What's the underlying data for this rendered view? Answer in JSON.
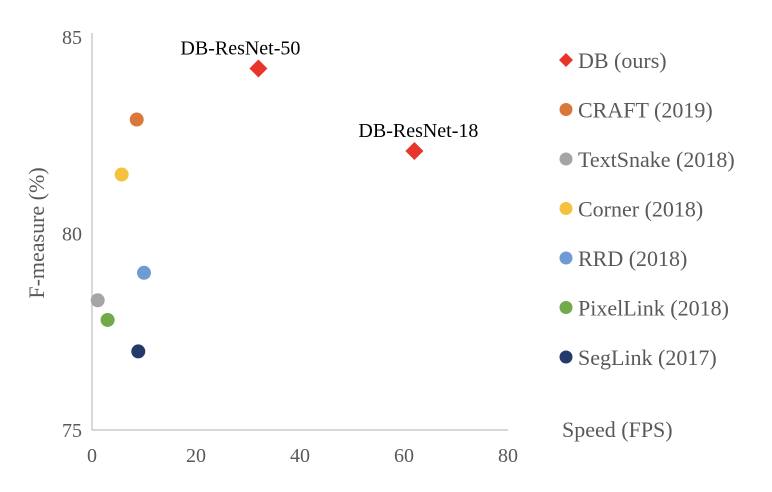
{
  "chart_data": {
    "type": "scatter",
    "title": "",
    "xlabel": "Speed (FPS)",
    "ylabel": "F-measure (%)",
    "xlim": [
      0,
      80
    ],
    "ylim": [
      75,
      85
    ],
    "x_ticks": [
      0,
      20,
      40,
      60,
      80
    ],
    "y_ticks": [
      75,
      80,
      85
    ],
    "grid": false,
    "legend_position": "right",
    "series": [
      {
        "name": "DB (ours)",
        "marker": "diamond",
        "color": "#e8352b",
        "points": [
          {
            "x": 32,
            "y": 84.2,
            "label": "DB-ResNet-50"
          },
          {
            "x": 62,
            "y": 82.1,
            "label": "DB-ResNet-18"
          }
        ]
      },
      {
        "name": "CRAFT (2019)",
        "marker": "circle",
        "color": "#d9783a",
        "points": [
          {
            "x": 8.6,
            "y": 82.9
          }
        ]
      },
      {
        "name": "TextSnake (2018)",
        "marker": "circle",
        "color": "#a5a5a5",
        "points": [
          {
            "x": 1.1,
            "y": 78.3
          }
        ]
      },
      {
        "name": "Corner (2018)",
        "marker": "circle",
        "color": "#f4c23c",
        "points": [
          {
            "x": 5.7,
            "y": 81.5
          }
        ]
      },
      {
        "name": "RRD (2018)",
        "marker": "circle",
        "color": "#6f9bd4",
        "points": [
          {
            "x": 10,
            "y": 79.0
          }
        ]
      },
      {
        "name": "PixelLink (2018)",
        "marker": "circle",
        "color": "#72a94a",
        "points": [
          {
            "x": 3,
            "y": 77.8
          }
        ]
      },
      {
        "name": "SegLink (2017)",
        "marker": "circle",
        "color": "#233a6b",
        "points": [
          {
            "x": 8.9,
            "y": 77.0
          }
        ]
      }
    ]
  }
}
